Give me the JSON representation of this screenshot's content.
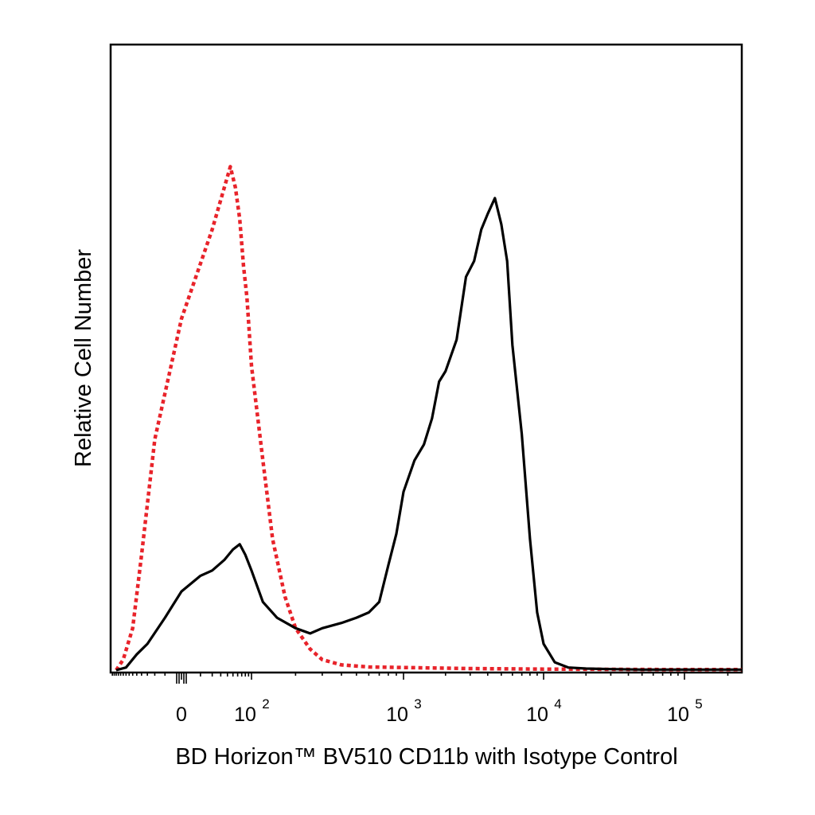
{
  "chart_data": {
    "type": "line",
    "xlabel": "BD Horizon™ BV510 CD11b with Isotype Control",
    "ylabel": "Relative Cell Number",
    "x_scale": "biexponential",
    "xlim": [
      -150,
      250000
    ],
    "ylim": [
      0,
      100
    ],
    "grid": false,
    "legend": "none",
    "x_tick_labels": [
      {
        "value": 0,
        "base": "0",
        "exp": ""
      },
      {
        "value": 100,
        "base": "10",
        "exp": "2"
      },
      {
        "value": 1000,
        "base": "10",
        "exp": "3"
      },
      {
        "value": 10000,
        "base": "10",
        "exp": "4"
      },
      {
        "value": 100000,
        "base": "10",
        "exp": "5"
      }
    ],
    "series": [
      {
        "style": "dotted",
        "color": "#e8232a",
        "x": [
          -120,
          -90,
          -60,
          -40,
          -20,
          0,
          20,
          35,
          45,
          55,
          65,
          75,
          85,
          100,
          120,
          140,
          170,
          200,
          250,
          300,
          400,
          600,
          1000,
          3000,
          10000,
          100000,
          250000
        ],
        "y": [
          0,
          2,
          8,
          22,
          44,
          67,
          84,
          92,
          96,
          92,
          86,
          77,
          71,
          58,
          40,
          25,
          14,
          8,
          4,
          2,
          1,
          0.6,
          0.5,
          0.3,
          0.2,
          0.1,
          0.1
        ]
      },
      {
        "style": "solid",
        "color": "#000000",
        "x": [
          -120,
          -80,
          -50,
          -30,
          -10,
          0,
          10,
          20,
          35,
          50,
          65,
          80,
          100,
          120,
          150,
          200,
          250,
          300,
          400,
          500,
          600,
          700,
          800,
          900,
          1000,
          1200,
          1400,
          1600,
          1800,
          2000,
          2400,
          2800,
          3200,
          3600,
          4000,
          4500,
          5000,
          5500,
          6000,
          7000,
          8000,
          9000,
          10000,
          12000,
          15000,
          20000,
          30000,
          50000,
          100000,
          250000
        ],
        "y": [
          0,
          0.5,
          3,
          5,
          10,
          15,
          18,
          19,
          21,
          23,
          24,
          22,
          19,
          13,
          10,
          8,
          7,
          8,
          9,
          10,
          11,
          13,
          20,
          26,
          34,
          40,
          43,
          48,
          55,
          57,
          63,
          75,
          78,
          84,
          87,
          90,
          85,
          78,
          62,
          45,
          25,
          11,
          5,
          1.5,
          0.5,
          0.3,
          0.2,
          0.1,
          0.1,
          0.1
        ]
      }
    ]
  }
}
